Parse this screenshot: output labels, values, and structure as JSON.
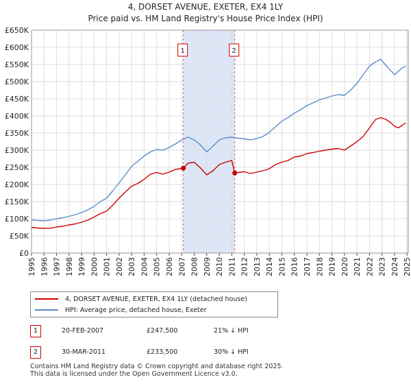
{
  "title": "4, DORSET AVENUE, EXETER, EX4 1LY",
  "subtitle": "Price paid vs. HM Land Registry's House Price Index (HPI)",
  "chart_data": {
    "type": "line",
    "title": "4, DORSET AVENUE, EXETER, EX4 1LY",
    "subtitle": "Price paid vs. HM Land Registry's House Price Index (HPI)",
    "xlabel": "",
    "ylabel": "",
    "xlim": [
      1995,
      2025.1
    ],
    "ylim": [
      0,
      650000
    ],
    "grid": true,
    "y_ticks": [
      0,
      50000,
      100000,
      150000,
      200000,
      250000,
      300000,
      350000,
      400000,
      450000,
      500000,
      550000,
      600000,
      650000
    ],
    "y_tick_labels": [
      "£0",
      "£50K",
      "£100K",
      "£150K",
      "£200K",
      "£250K",
      "£300K",
      "£350K",
      "£400K",
      "£450K",
      "£500K",
      "£550K",
      "£600K",
      "£650K"
    ],
    "x_ticks": [
      1995,
      1996,
      1997,
      1998,
      1999,
      2000,
      2001,
      2002,
      2003,
      2004,
      2005,
      2006,
      2007,
      2008,
      2009,
      2010,
      2011,
      2012,
      2013,
      2014,
      2015,
      2016,
      2017,
      2018,
      2019,
      2020,
      2021,
      2022,
      2023,
      2024,
      2025
    ],
    "x_tick_labels": [
      "1995",
      "1996",
      "1997",
      "1998",
      "1999",
      "2000",
      "2001",
      "2002",
      "2003",
      "2004",
      "2005",
      "2006",
      "2007",
      "2008",
      "2009",
      "2010",
      "2011",
      "2012",
      "2013",
      "2014",
      "2015",
      "2016",
      "2017",
      "2018",
      "2019",
      "2020",
      "2021",
      "2022",
      "2023",
      "2024",
      "2025"
    ],
    "series": [
      {
        "name": "4, DORSET AVENUE, EXETER, EX4 1LY (detached house)",
        "color": "#cc0000",
        "x": [
          1995.0,
          1995.5,
          1996.0,
          1996.5,
          1997.0,
          1997.5,
          1998.0,
          1998.5,
          1999.0,
          1999.5,
          2000.0,
          2000.5,
          2001.0,
          2001.5,
          2002.0,
          2002.5,
          2003.0,
          2003.5,
          2004.0,
          2004.5,
          2005.0,
          2005.5,
          2006.0,
          2006.5,
          2007.13,
          2007.5,
          2008.0,
          2008.5,
          2009.0,
          2009.5,
          2010.0,
          2010.5,
          2011.0,
          2011.24,
          2011.5,
          2012.0,
          2012.5,
          2013.0,
          2013.5,
          2014.0,
          2014.5,
          2015.0,
          2015.5,
          2016.0,
          2016.5,
          2017.0,
          2017.5,
          2018.0,
          2018.5,
          2019.0,
          2019.5,
          2020.0,
          2020.5,
          2021.0,
          2021.5,
          2022.0,
          2022.5,
          2022.9,
          2023.3,
          2023.7,
          2024.0,
          2024.3,
          2024.6,
          2024.9
        ],
        "values": [
          75000,
          73000,
          72000,
          72500,
          76000,
          78000,
          82000,
          85000,
          90000,
          96000,
          105000,
          115000,
          122000,
          140000,
          160000,
          178000,
          195000,
          203000,
          215000,
          230000,
          235000,
          230000,
          236000,
          244000,
          247500,
          262000,
          265000,
          248000,
          228000,
          240000,
          258000,
          265000,
          270000,
          233500,
          235000,
          237000,
          232000,
          236000,
          240000,
          246000,
          258000,
          265000,
          270000,
          280000,
          283000,
          290000,
          293000,
          297000,
          300000,
          303000,
          305000,
          300000,
          312000,
          325000,
          340000,
          365000,
          390000,
          395000,
          390000,
          380000,
          370000,
          365000,
          372000,
          380000
        ]
      },
      {
        "name": "HPI: Average price, detached house, Exeter",
        "color": "#5b8cc8",
        "x": [
          1995.0,
          1995.5,
          1996.0,
          1996.5,
          1997.0,
          1997.5,
          1998.0,
          1998.5,
          1999.0,
          1999.5,
          2000.0,
          2000.5,
          2001.0,
          2001.5,
          2002.0,
          2002.5,
          2003.0,
          2003.5,
          2004.0,
          2004.5,
          2005.0,
          2005.5,
          2006.0,
          2006.5,
          2007.0,
          2007.5,
          2008.0,
          2008.5,
          2009.0,
          2009.5,
          2010.0,
          2010.5,
          2011.0,
          2011.5,
          2012.0,
          2012.5,
          2013.0,
          2013.5,
          2014.0,
          2014.5,
          2015.0,
          2015.5,
          2016.0,
          2016.5,
          2017.0,
          2017.5,
          2018.0,
          2018.5,
          2019.0,
          2019.5,
          2020.0,
          2020.5,
          2021.0,
          2021.5,
          2022.0,
          2022.5,
          2022.9,
          2023.3,
          2023.7,
          2024.0,
          2024.3,
          2024.6,
          2024.9
        ],
        "values": [
          97000,
          95000,
          94000,
          96000,
          100000,
          103000,
          107000,
          112000,
          118000,
          126000,
          136000,
          150000,
          160000,
          182000,
          205000,
          228000,
          253000,
          268000,
          283000,
          295000,
          302000,
          300000,
          308000,
          318000,
          330000,
          338000,
          330000,
          315000,
          295000,
          312000,
          330000,
          336000,
          338000,
          335000,
          333000,
          330000,
          334000,
          340000,
          352000,
          368000,
          385000,
          395000,
          408000,
          418000,
          430000,
          438000,
          447000,
          452000,
          458000,
          462000,
          460000,
          475000,
          495000,
          520000,
          545000,
          558000,
          565000,
          548000,
          532000,
          520000,
          530000,
          540000,
          545000
        ]
      }
    ],
    "events": [
      {
        "label": "1",
        "x": 2007.13,
        "price": 247500
      },
      {
        "label": "2",
        "x": 2011.24,
        "price": 233500
      }
    ],
    "shaded_range": [
      2007.13,
      2011.24
    ],
    "hatched_from": 2024.92
  },
  "legend": {
    "property": "4, DORSET AVENUE, EXETER, EX4 1LY (detached house)",
    "hpi": "HPI: Average price, detached house, Exeter"
  },
  "transactions": [
    {
      "num": "1",
      "date": "20-FEB-2007",
      "price": "£247,500",
      "delta": "21% ↓ HPI"
    },
    {
      "num": "2",
      "date": "30-MAR-2011",
      "price": "£233,500",
      "delta": "30% ↓ HPI"
    }
  ],
  "footer": {
    "line1": "Contains HM Land Registry data © Crown copyright and database right 2025.",
    "line2": "This data is licensed under the Open Government Licence v3.0."
  },
  "colors": {
    "property": "#cc0000",
    "hpi": "#5b8cc8",
    "shade": "#dde6f7",
    "grid": "#dddddd"
  }
}
